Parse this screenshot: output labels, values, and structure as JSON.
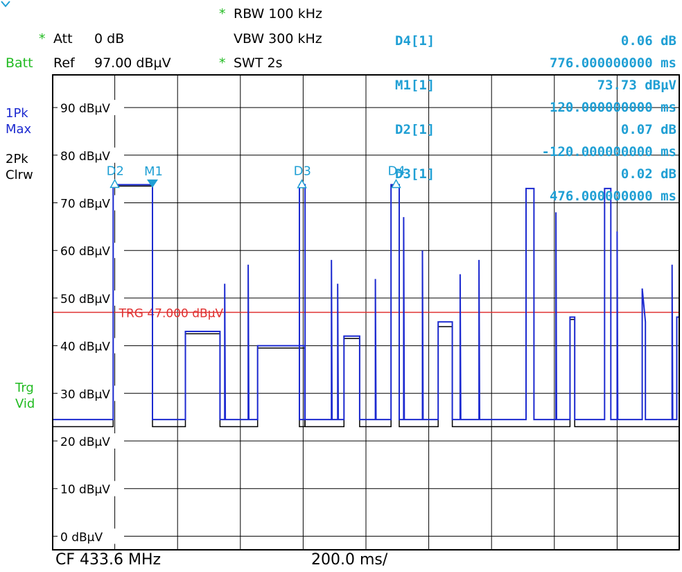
{
  "header": {
    "rbw_marker": "*",
    "rbw": "RBW 100 kHz",
    "att_marker": "*",
    "att": "Att",
    "att_value": "0 dB",
    "vbw": "VBW 300 kHz",
    "batt": "Batt",
    "ref": "Ref",
    "ref_value": "97.00 dBµV",
    "swt_marker": "*",
    "swt": "SWT 2s"
  },
  "marker_table": [
    {
      "label": "D4[1]",
      "value": "0.06 dB",
      "time": "776.000000000 ms"
    },
    {
      "label": "M1[1]",
      "value": "73.73 dBµV",
      "time": "120.000000000 ms"
    },
    {
      "label": "D2[1]",
      "value": "0.07 dB",
      "time": "-120.000000000 ms"
    },
    {
      "label": "D3[1]",
      "value": "0.02 dB",
      "time": "476.000000000 ms"
    }
  ],
  "side_labels": {
    "trace1_line1": "1Pk",
    "trace1_line2": "Max",
    "trace2_line1": "2Pk",
    "trace2_line2": "Clrw",
    "trig_line1": "Trg",
    "trig_line2": "Vid"
  },
  "footer": {
    "center_freq": "CF 433.6 MHz",
    "sweep_div": "200.0 ms/"
  },
  "colors": {
    "trace_max": "#1c2ad0",
    "trace_clrw": "#000000",
    "trigger_line": "#e03030",
    "marker": "#1f9fd4",
    "grid": "#000000"
  },
  "chart_data": {
    "type": "line",
    "xlabel": "",
    "ylabel": "",
    "x_unit": "ms",
    "xlim": [
      -200,
      1800
    ],
    "ylim": [
      -3,
      97
    ],
    "y_ticks": [
      0,
      10,
      20,
      30,
      40,
      50,
      60,
      70,
      80,
      90
    ],
    "y_tick_labels": [
      "0 dBµV",
      "10 dBµV",
      "20 dBµV",
      "30 dBµV",
      "40 dBµV",
      "50 dBµV",
      "60 dBµV",
      "70 dBµV",
      "80 dBµV",
      "90 dBµV"
    ],
    "x_divisions": 10,
    "trigger": {
      "level": 47,
      "label": "TRG 47.000 dBµV"
    },
    "markers": [
      {
        "name": "D2",
        "x": 0,
        "y": 73.8,
        "shape": "delta"
      },
      {
        "name": "M1",
        "x": 120,
        "y": 73.73,
        "shape": "marker"
      },
      {
        "name": "D3",
        "x": 596,
        "y": 73.75,
        "shape": "delta"
      },
      {
        "name": "D4",
        "x": 896,
        "y": 73.79,
        "shape": "delta"
      }
    ],
    "series": [
      {
        "name": "1Pk Max",
        "points": [
          [
            -200,
            24.5
          ],
          [
            -5,
            24.5
          ],
          [
            -5,
            73.8
          ],
          [
            120,
            73.8
          ],
          [
            120,
            24.5
          ],
          [
            225,
            24.5
          ],
          [
            225,
            43
          ],
          [
            335,
            43
          ],
          [
            335,
            24.5
          ],
          [
            350,
            24.5
          ],
          [
            350,
            53
          ],
          [
            352,
            24.5
          ],
          [
            425,
            24.5
          ],
          [
            425,
            57
          ],
          [
            427,
            24.5
          ],
          [
            455,
            24.5
          ],
          [
            455,
            40
          ],
          [
            605,
            40
          ],
          [
            605,
            24.5
          ],
          [
            588,
            24.5
          ],
          [
            588,
            73.8
          ],
          [
            606,
            73.8
          ],
          [
            606,
            24.5
          ],
          [
            690,
            24.5
          ],
          [
            690,
            58
          ],
          [
            692,
            24.5
          ],
          [
            710,
            24.5
          ],
          [
            710,
            53
          ],
          [
            712,
            24.5
          ],
          [
            730,
            24.5
          ],
          [
            730,
            42
          ],
          [
            780,
            42
          ],
          [
            780,
            24.5
          ],
          [
            830,
            24.5
          ],
          [
            830,
            54
          ],
          [
            832,
            24.5
          ],
          [
            880,
            24.5
          ],
          [
            880,
            73.8
          ],
          [
            906,
            73.8
          ],
          [
            906,
            24.5
          ],
          [
            920,
            24.5
          ],
          [
            920,
            67
          ],
          [
            922,
            24.5
          ],
          [
            980,
            24.5
          ],
          [
            980,
            60
          ],
          [
            982,
            24.5
          ],
          [
            1030,
            24.5
          ],
          [
            1030,
            45
          ],
          [
            1075,
            45
          ],
          [
            1075,
            24.5
          ],
          [
            1100,
            24.5
          ],
          [
            1100,
            55
          ],
          [
            1102,
            24.5
          ],
          [
            1160,
            24.5
          ],
          [
            1160,
            58
          ],
          [
            1162,
            24.5
          ],
          [
            1310,
            24.5
          ],
          [
            1310,
            73
          ],
          [
            1335,
            73
          ],
          [
            1335,
            24.5
          ],
          [
            1405,
            24.5
          ],
          [
            1405,
            68
          ],
          [
            1407,
            24.5
          ],
          [
            1450,
            24.5
          ],
          [
            1450,
            46
          ],
          [
            1465,
            46
          ],
          [
            1465,
            24.5
          ],
          [
            1560,
            24.5
          ],
          [
            1560,
            73
          ],
          [
            1580,
            73
          ],
          [
            1580,
            24.5
          ],
          [
            1600,
            24.5
          ],
          [
            1600,
            64
          ],
          [
            1602,
            24.5
          ],
          [
            1680,
            24.5
          ],
          [
            1680,
            52
          ],
          [
            1690,
            45
          ],
          [
            1690,
            24.5
          ],
          [
            1775,
            24.5
          ],
          [
            1775,
            57
          ],
          [
            1777,
            24.5
          ],
          [
            1790,
            24.5
          ],
          [
            1790,
            46
          ],
          [
            1800,
            46
          ],
          [
            1800,
            24.5
          ]
        ]
      },
      {
        "name": "2Pk Clrw",
        "points": [
          [
            -200,
            23
          ],
          [
            -5,
            23
          ],
          [
            -5,
            73.5
          ],
          [
            120,
            73.5
          ],
          [
            120,
            23
          ],
          [
            225,
            23
          ],
          [
            225,
            42.5
          ],
          [
            335,
            42.5
          ],
          [
            335,
            23
          ],
          [
            455,
            23
          ],
          [
            455,
            39.5
          ],
          [
            605,
            39.5
          ],
          [
            605,
            23
          ],
          [
            588,
            23
          ],
          [
            588,
            73.5
          ],
          [
            606,
            73.5
          ],
          [
            606,
            23
          ],
          [
            730,
            23
          ],
          [
            730,
            41.5
          ],
          [
            780,
            41.5
          ],
          [
            780,
            23
          ],
          [
            880,
            23
          ],
          [
            880,
            73.5
          ],
          [
            906,
            73.5
          ],
          [
            906,
            23
          ],
          [
            1030,
            23
          ],
          [
            1030,
            44
          ],
          [
            1075,
            44
          ],
          [
            1075,
            23
          ],
          [
            1450,
            23
          ],
          [
            1450,
            45.5
          ],
          [
            1465,
            45.5
          ],
          [
            1465,
            23
          ],
          [
            1800,
            23
          ]
        ]
      }
    ]
  }
}
